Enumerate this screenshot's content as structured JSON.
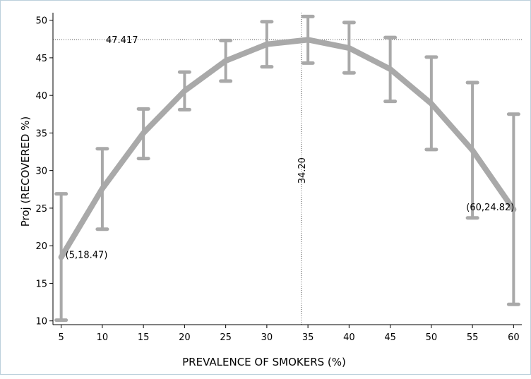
{
  "chart_data": {
    "type": "line",
    "title": "",
    "xlabel": "PREVALENCE OF SMOKERS (%)",
    "ylabel": "Proj (RECOVERED %)",
    "xlim": [
      4,
      61
    ],
    "ylim": [
      9.5,
      51
    ],
    "x_ticks": [
      5,
      10,
      15,
      20,
      25,
      30,
      35,
      40,
      45,
      50,
      55,
      60
    ],
    "y_ticks": [
      10,
      15,
      20,
      25,
      30,
      35,
      40,
      45,
      50
    ],
    "grid": false,
    "legend": "none",
    "series": [
      {
        "x": [
          5,
          10,
          15,
          20,
          25,
          30,
          35,
          40,
          45,
          50,
          55,
          60
        ],
        "values": [
          18.47,
          27.6,
          35.0,
          40.6,
          44.6,
          46.8,
          47.4,
          46.3,
          43.5,
          38.9,
          32.7,
          24.82
        ],
        "lower": [
          10.1,
          22.2,
          31.6,
          38.1,
          41.9,
          43.8,
          44.3,
          43.0,
          39.2,
          32.8,
          23.7,
          12.2
        ],
        "upper": [
          26.9,
          32.9,
          38.2,
          43.1,
          47.3,
          49.8,
          50.5,
          49.7,
          47.7,
          45.1,
          41.7,
          37.5
        ]
      }
    ],
    "reference_lines": {
      "horizontal": {
        "y": 47.417,
        "label": "47.417"
      },
      "vertical": {
        "x": 34.2,
        "label": "34.20"
      }
    },
    "point_labels": [
      {
        "x": 5,
        "y": 18.47,
        "text": "(5,18.47)"
      },
      {
        "x": 60,
        "y": 24.82,
        "text": "(60,24.82)"
      }
    ],
    "colors": {
      "line": "#a9a9a9",
      "errorbar": "#a9a9a9",
      "axis": "#000000",
      "reference": "#555555",
      "frame": "#bcd0dc"
    }
  }
}
